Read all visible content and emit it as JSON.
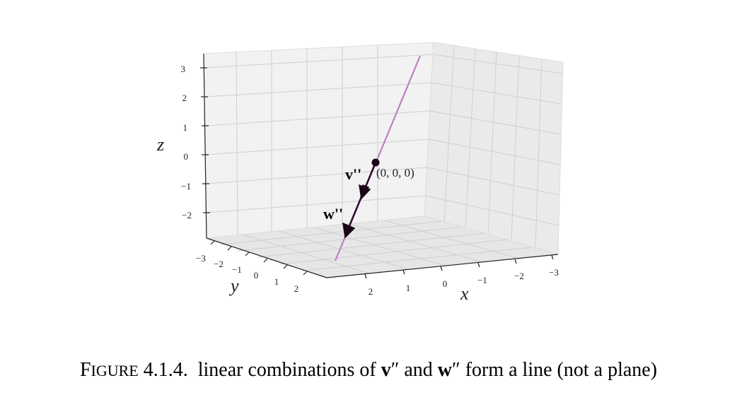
{
  "figure": {
    "caption": {
      "first_letter": "F",
      "small_caps_rest": "IGURE",
      "number": "4.1.4.",
      "text_before_v": "linear combinations of",
      "v_symbol": "v",
      "prime": "″",
      "and_word": "and",
      "w_symbol": "w",
      "text_after_w": "form a line (not a plane)"
    },
    "axes": {
      "x_label": "x",
      "y_label": "y",
      "z_label": "z",
      "x_ticks": [
        "2",
        "1",
        "0",
        "−1",
        "−2",
        "−3"
      ],
      "y_ticks": [
        "−3",
        "−2",
        "−1",
        "0",
        "1",
        "2"
      ],
      "z_ticks": [
        "3",
        "2",
        "1",
        "0",
        "−1",
        "−2"
      ]
    },
    "annotations": {
      "v_label": "v''",
      "w_label": "w''",
      "origin_label": "(0, 0, 0)"
    },
    "colors": {
      "line": "#c07cc4",
      "arrow": "#2a0a24",
      "pane": "#f2f2f2",
      "grid": "#cccccc"
    }
  }
}
